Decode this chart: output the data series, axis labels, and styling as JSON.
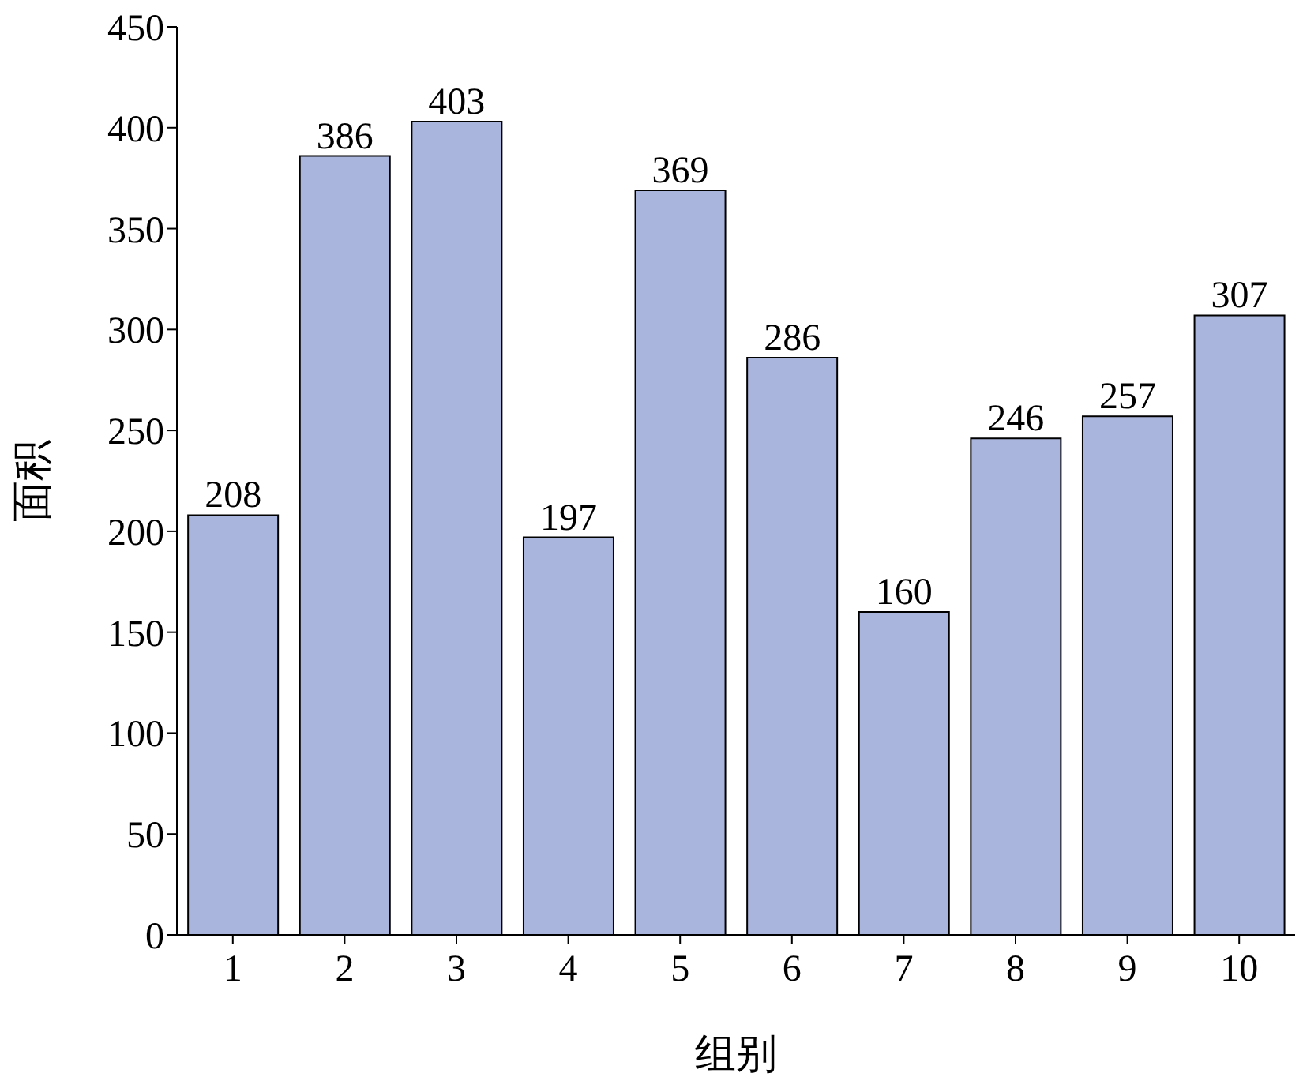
{
  "chart_data": {
    "type": "bar",
    "xlabel": "组别",
    "ylabel": "面积",
    "categories": [
      "1",
      "2",
      "3",
      "4",
      "5",
      "6",
      "7",
      "8",
      "9",
      "10"
    ],
    "values": [
      208,
      386,
      403,
      197,
      369,
      286,
      160,
      246,
      257,
      307
    ],
    "color": "#aab5dd",
    "ylim": [
      0,
      450
    ],
    "yticks": [
      0,
      50,
      100,
      150,
      200,
      250,
      300,
      350,
      400,
      450
    ],
    "data_labels": true,
    "grid": false
  }
}
